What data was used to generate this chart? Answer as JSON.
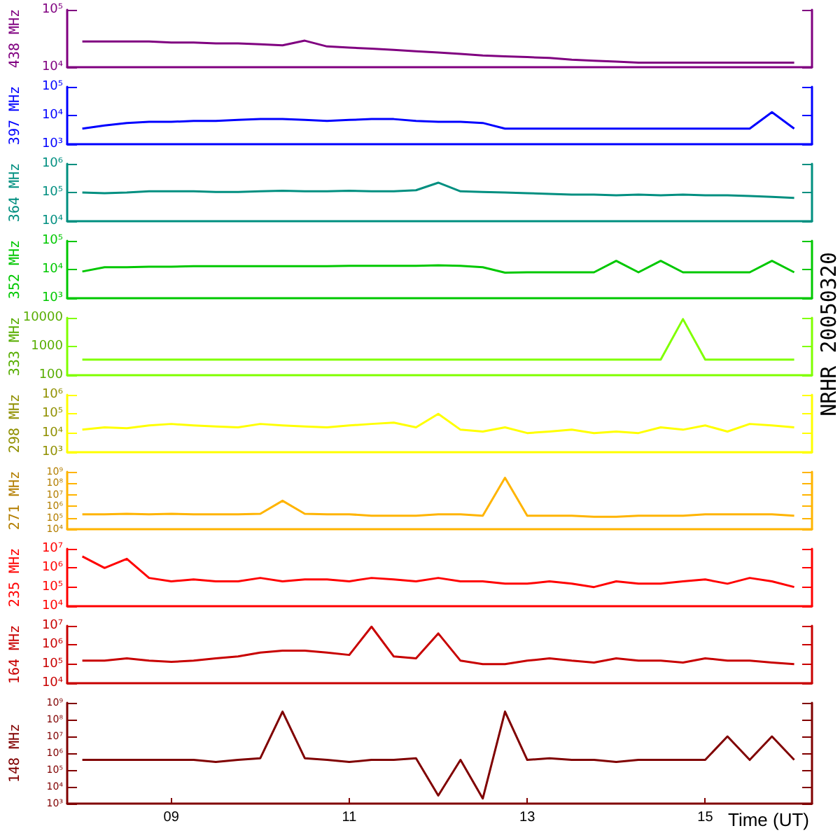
{
  "chart_data": [
    {
      "type": "line",
      "ylabel": "438 MHz",
      "log": true,
      "tick_labels": "y",
      "xlim": [
        7.83,
        16.2
      ],
      "ylim": [
        10000,
        100000
      ],
      "yticks": [
        {
          "value": 10000,
          "label": "10⁴"
        },
        {
          "value": 100000,
          "label": "10⁵"
        }
      ],
      "x": [
        8,
        8.25,
        8.5,
        8.75,
        9,
        9.25,
        9.5,
        9.75,
        10,
        10.25,
        10.5,
        10.75,
        11,
        11.25,
        11.5,
        11.75,
        12,
        12.25,
        12.5,
        12.75,
        13,
        13.25,
        13.5,
        13.75,
        14,
        14.25,
        14.5,
        14.75,
        15,
        15.25,
        15.5,
        15.75,
        16
      ],
      "series": [
        {
          "color": "#800080",
          "values": [
            28000,
            28000,
            28000,
            28000,
            27000,
            27000,
            26000,
            26000,
            25000,
            24000,
            29000,
            23000,
            22000,
            21000,
            20000,
            19000,
            18000,
            17000,
            16000,
            15500,
            15000,
            14500,
            13500,
            13000,
            12500,
            12000,
            12000,
            12000,
            12000,
            12000,
            12000,
            12000,
            12000
          ]
        }
      ]
    },
    {
      "type": "line",
      "ylabel": "397 MHz",
      "log": true,
      "tick_labels": "y",
      "xlim": [
        7.83,
        16.2
      ],
      "ylim": [
        1000,
        100000
      ],
      "yticks": [
        {
          "value": 1000,
          "label": "10³"
        },
        {
          "value": 10000,
          "label": "10⁴"
        },
        {
          "value": 100000,
          "label": "10⁵"
        }
      ],
      "x": [
        8,
        8.25,
        8.5,
        8.75,
        9,
        9.25,
        9.5,
        9.75,
        10,
        10.25,
        10.5,
        10.75,
        11,
        11.25,
        11.5,
        11.75,
        12,
        12.25,
        12.5,
        12.75,
        13,
        13.25,
        13.5,
        13.75,
        14,
        14.25,
        14.5,
        14.75,
        15,
        15.25,
        15.5,
        15.75,
        16
      ],
      "series": [
        {
          "color": "#0000ff",
          "values": [
            3500,
            4500,
            5500,
            6000,
            6000,
            6500,
            6500,
            7000,
            7500,
            7500,
            7000,
            6500,
            7000,
            7500,
            7500,
            6500,
            6000,
            6000,
            5500,
            3500,
            3500,
            3500,
            3500,
            3500,
            3500,
            3500,
            3500,
            3500,
            3500,
            3500,
            3500,
            13000,
            3500
          ]
        }
      ]
    },
    {
      "type": "line",
      "ylabel": "364 MHz",
      "log": true,
      "tick_labels": "y",
      "xlim": [
        7.83,
        16.2
      ],
      "ylim": [
        10000,
        1000000
      ],
      "yticks": [
        {
          "value": 10000,
          "label": "10⁴"
        },
        {
          "value": 100000,
          "label": "10⁵"
        },
        {
          "value": 1000000,
          "label": "10⁶"
        }
      ],
      "x": [
        8,
        8.25,
        8.5,
        8.75,
        9,
        9.25,
        9.5,
        9.75,
        10,
        10.25,
        10.5,
        10.75,
        11,
        11.25,
        11.5,
        11.75,
        12,
        12.25,
        12.5,
        12.75,
        13,
        13.25,
        13.5,
        13.75,
        14,
        14.25,
        14.5,
        14.75,
        15,
        15.25,
        15.5,
        15.75,
        16
      ],
      "series": [
        {
          "color": "#008f80",
          "values": [
            100000,
            95000,
            100000,
            110000,
            110000,
            110000,
            105000,
            105000,
            110000,
            115000,
            110000,
            110000,
            115000,
            110000,
            110000,
            120000,
            220000,
            110000,
            105000,
            100000,
            95000,
            90000,
            85000,
            85000,
            80000,
            85000,
            80000,
            85000,
            80000,
            80000,
            75000,
            70000,
            65000
          ]
        }
      ]
    },
    {
      "type": "line",
      "ylabel": "352 MHz",
      "log": true,
      "tick_labels": "y",
      "xlim": [
        7.83,
        16.2
      ],
      "ylim": [
        1000,
        100000
      ],
      "yticks": [
        {
          "value": 1000,
          "label": "10³"
        },
        {
          "value": 10000,
          "label": "10⁴"
        },
        {
          "value": 100000,
          "label": "10⁵"
        }
      ],
      "x": [
        8,
        8.25,
        8.5,
        8.75,
        9,
        9.25,
        9.5,
        9.75,
        10,
        10.25,
        10.5,
        10.75,
        11,
        11.25,
        11.5,
        11.75,
        12,
        12.25,
        12.5,
        12.75,
        13,
        13.25,
        13.5,
        13.75,
        14,
        14.25,
        14.5,
        14.75,
        15,
        15.25,
        15.5,
        15.75,
        16
      ],
      "series": [
        {
          "color": "#00c800",
          "values": [
            8500,
            12000,
            12000,
            12500,
            12500,
            13000,
            13000,
            13000,
            13000,
            13000,
            13000,
            13000,
            13500,
            13500,
            13500,
            13500,
            14000,
            13500,
            12000,
            7800,
            8000,
            8000,
            8000,
            8000,
            20000,
            8000,
            20000,
            8000,
            8000,
            8000,
            8000,
            20000,
            8000
          ]
        }
      ]
    },
    {
      "type": "line",
      "ylabel": "333 MHz",
      "log": true,
      "tick_labels": "y",
      "xlim": [
        7.83,
        16.2
      ],
      "ylim": [
        100,
        10000
      ],
      "yticks": [
        100,
        1000,
        10000
      ],
      "annotations": [
        "NRHR 20050320"
      ],
      "x": [
        8,
        8.25,
        8.5,
        8.75,
        9,
        9.25,
        9.5,
        9.75,
        10,
        10.25,
        10.5,
        10.75,
        11,
        11.25,
        11.5,
        11.75,
        12,
        12.25,
        12.5,
        12.75,
        13,
        13.25,
        13.5,
        13.75,
        14,
        14.25,
        14.5,
        14.75,
        15,
        15.25,
        15.5,
        15.75,
        16
      ],
      "series": [
        {
          "color": "#80ff00",
          "values": [
            350,
            350,
            350,
            350,
            350,
            350,
            350,
            350,
            350,
            350,
            350,
            350,
            350,
            350,
            350,
            350,
            350,
            350,
            350,
            350,
            350,
            350,
            350,
            350,
            350,
            350,
            350,
            9000,
            350,
            350,
            350,
            350,
            350
          ]
        }
      ]
    },
    {
      "type": "line",
      "ylabel": "298 MHz",
      "log": true,
      "tick_labels": "y",
      "xlim": [
        7.83,
        16.2
      ],
      "ylim": [
        1000,
        1000000
      ],
      "yticks": [
        {
          "value": 1000,
          "label": "10³"
        },
        {
          "value": 10000,
          "label": "10⁴"
        },
        {
          "value": 100000,
          "label": "10⁵"
        },
        {
          "value": 1000000,
          "label": "10⁶"
        }
      ],
      "x": [
        8,
        8.25,
        8.5,
        8.75,
        9,
        9.25,
        9.5,
        9.75,
        10,
        10.25,
        10.5,
        10.75,
        11,
        11.25,
        11.5,
        11.75,
        12,
        12.25,
        12.5,
        12.75,
        13,
        13.25,
        13.5,
        13.75,
        14,
        14.25,
        14.5,
        14.75,
        15,
        15.25,
        15.5,
        15.75,
        16
      ],
      "series": [
        {
          "color": "#ffff00",
          "values": [
            15000,
            20000,
            18000,
            25000,
            30000,
            25000,
            22000,
            20000,
            30000,
            25000,
            22000,
            20000,
            25000,
            30000,
            35000,
            20000,
            100000,
            15000,
            12000,
            20000,
            10000,
            12000,
            15000,
            10000,
            12000,
            10000,
            20000,
            15000,
            25000,
            12000,
            30000,
            25000,
            20000
          ]
        }
      ]
    },
    {
      "type": "line",
      "ylabel": "271 MHz",
      "log": true,
      "tick_labels": "y",
      "xlim": [
        7.83,
        16.2
      ],
      "ylim": [
        10000,
        1000000000
      ],
      "yticks": [
        {
          "value": 10000,
          "label": "10⁴"
        },
        {
          "value": 100000,
          "label": "10⁵"
        },
        {
          "value": 1000000,
          "label": "10⁶"
        },
        {
          "value": 10000000,
          "label": "10⁷"
        },
        {
          "value": 100000000,
          "label": "10⁸"
        },
        {
          "value": 1000000000,
          "label": "10⁹"
        }
      ],
      "x": [
        8,
        8.25,
        8.5,
        8.75,
        9,
        9.25,
        9.5,
        9.75,
        10,
        10.25,
        10.5,
        10.75,
        11,
        11.25,
        11.5,
        11.75,
        12,
        12.25,
        12.5,
        12.75,
        13,
        13.25,
        13.5,
        13.75,
        14,
        14.25,
        14.5,
        14.75,
        15,
        15.25,
        15.5,
        15.75,
        16
      ],
      "series": [
        {
          "color": "#ffb400",
          "values": [
            200000,
            200000,
            220000,
            200000,
            220000,
            200000,
            200000,
            200000,
            220000,
            3000000,
            220000,
            200000,
            200000,
            150000,
            150000,
            150000,
            200000,
            200000,
            150000,
            300000000,
            150000,
            150000,
            150000,
            120000,
            120000,
            150000,
            150000,
            150000,
            200000,
            200000,
            200000,
            200000,
            150000
          ]
        }
      ]
    },
    {
      "type": "line",
      "ylabel": "235 MHz",
      "log": true,
      "tick_labels": "y",
      "xlim": [
        7.83,
        16.2
      ],
      "ylim": [
        10000,
        10000000
      ],
      "yticks": [
        {
          "value": 10000,
          "label": "10⁴"
        },
        {
          "value": 100000,
          "label": "10⁵"
        },
        {
          "value": 1000000,
          "label": "10⁶"
        },
        {
          "value": 10000000,
          "label": "10⁷"
        }
      ],
      "x": [
        8,
        8.25,
        8.5,
        8.75,
        9,
        9.25,
        9.5,
        9.75,
        10,
        10.25,
        10.5,
        10.75,
        11,
        11.25,
        11.5,
        11.75,
        12,
        12.25,
        12.5,
        12.75,
        13,
        13.25,
        13.5,
        13.75,
        14,
        14.25,
        14.5,
        14.75,
        15,
        15.25,
        15.5,
        15.75,
        16
      ],
      "series": [
        {
          "color": "#ff0000",
          "values": [
            4000000,
            1000000,
            3000000,
            300000,
            200000,
            250000,
            200000,
            200000,
            300000,
            200000,
            250000,
            250000,
            200000,
            300000,
            250000,
            200000,
            300000,
            200000,
            200000,
            150000,
            150000,
            200000,
            150000,
            100000,
            200000,
            150000,
            150000,
            200000,
            250000,
            150000,
            300000,
            200000,
            100000
          ]
        }
      ]
    },
    {
      "type": "line",
      "ylabel": "164 MHz",
      "log": true,
      "tick_labels": "y",
      "xlim": [
        7.83,
        16.2
      ],
      "ylim": [
        10000,
        10000000
      ],
      "yticks": [
        {
          "value": 10000,
          "label": "10⁴"
        },
        {
          "value": 100000,
          "label": "10⁵"
        },
        {
          "value": 1000000,
          "label": "10⁶"
        },
        {
          "value": 10000000,
          "label": "10⁷"
        }
      ],
      "x": [
        8,
        8.25,
        8.5,
        8.75,
        9,
        9.25,
        9.5,
        9.75,
        10,
        10.25,
        10.5,
        10.75,
        11,
        11.25,
        11.5,
        11.75,
        12,
        12.25,
        12.5,
        12.75,
        13,
        13.25,
        13.5,
        13.75,
        14,
        14.25,
        14.5,
        14.75,
        15,
        15.25,
        15.5,
        15.75,
        16
      ],
      "series": [
        {
          "color": "#c80000",
          "values": [
            150000,
            150000,
            200000,
            150000,
            130000,
            150000,
            200000,
            250000,
            400000,
            500000,
            500000,
            400000,
            300000,
            9000000,
            250000,
            200000,
            4000000,
            150000,
            100000,
            100000,
            150000,
            200000,
            150000,
            120000,
            200000,
            150000,
            150000,
            120000,
            200000,
            150000,
            150000,
            120000,
            100000
          ]
        }
      ]
    },
    {
      "type": "line",
      "ylabel": "148 MHz",
      "xlabel": "Time (UT)",
      "log": true,
      "xlim": [
        7.83,
        16.2
      ],
      "xticks": [
        {
          "value": 9,
          "label": "09"
        },
        11,
        13,
        15
      ],
      "ylim": [
        1000,
        1000000000
      ],
      "yticks": [
        {
          "value": 1000,
          "label": "10³"
        },
        {
          "value": 10000,
          "label": "10⁴"
        },
        {
          "value": 100000,
          "label": "10⁵"
        },
        {
          "value": 1000000,
          "label": "10⁶"
        },
        {
          "value": 10000000,
          "label": "10⁷"
        },
        {
          "value": 100000000,
          "label": "10⁸"
        },
        {
          "value": 1000000000,
          "label": "10⁹"
        }
      ],
      "x": [
        8,
        8.25,
        8.5,
        8.75,
        9,
        9.25,
        9.5,
        9.75,
        10,
        10.25,
        10.5,
        10.75,
        11,
        11.25,
        11.5,
        11.75,
        12,
        12.25,
        12.5,
        12.75,
        13,
        13.25,
        13.5,
        13.75,
        14,
        14.25,
        14.5,
        14.75,
        15,
        15.25,
        15.5,
        15.75,
        16
      ],
      "series": [
        {
          "color": "#800000",
          "values": [
            400000,
            400000,
            400000,
            400000,
            400000,
            400000,
            300000,
            400000,
            500000,
            300000000,
            500000,
            400000,
            300000,
            400000,
            400000,
            500000,
            3000,
            400000,
            2000,
            300000000,
            400000,
            500000,
            400000,
            400000,
            300000,
            400000,
            400000,
            400000,
            400000,
            10000000,
            400000,
            10000000,
            400000
          ]
        }
      ]
    }
  ]
}
